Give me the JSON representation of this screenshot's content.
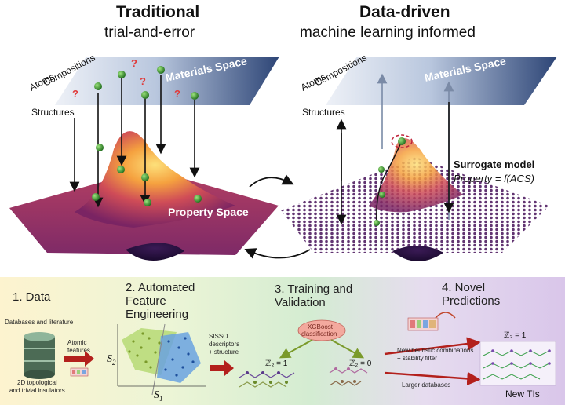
{
  "left": {
    "title": "Traditional",
    "subtitle": "trial-and-error",
    "plane_label": "Materials Space",
    "axis_atoms": "Atoms",
    "axis_compositions": "Compositions",
    "axis_structures": "Structures",
    "surface_label": "Property Space",
    "question_mark": "?"
  },
  "right": {
    "title": "Data-driven",
    "subtitle": "machine learning informed",
    "plane_label": "Materials Space",
    "axis_atoms": "Atoms",
    "axis_compositions": "Compositions",
    "axis_structures": "Structures",
    "model_title": "Surrogate model",
    "model_formula": "Property = f(ACS)"
  },
  "steps": {
    "data": {
      "title": "1. Data",
      "sources": "Databases and literature",
      "db_caption_1": "2D topological",
      "db_caption_2": "and trivial insulators",
      "features_1": "Atomic",
      "features_2": "features"
    },
    "feature": {
      "title_1": "2. Automated",
      "title_2": "Feature",
      "title_3": "Engineering",
      "s2": "S",
      "s2_sub": "2",
      "s1": "S",
      "s1_sub": "1",
      "descriptors_1": "SISSO",
      "descriptors_2": "descriptors",
      "descriptors_3": "+ structure"
    },
    "training": {
      "title_1": "3. Training and",
      "title_2": "Validation",
      "classifier_1": "XGBoost",
      "classifier_2": "classification",
      "z2_one": "ℤ₂ = 1",
      "z2_zero": "ℤ₂ = 0"
    },
    "predictions": {
      "title_1": "4. Novel",
      "title_2": "Predictions",
      "heuristic_1": "New heuristic combinations",
      "heuristic_2": "+ stability filter",
      "larger": "Larger databases",
      "z2_one": "ℤ₂ = 1",
      "result": "New TIs"
    }
  },
  "colors": {
    "plane_dark": "#2d4576",
    "plane_light": "#dfe6f1",
    "surface_low": "#2a1140",
    "surface_mid": "#a3306a",
    "surface_high": "#f5b843",
    "question": "#e03a3a",
    "dot": "#2f9a2c",
    "arrow_red": "#b3201c"
  }
}
